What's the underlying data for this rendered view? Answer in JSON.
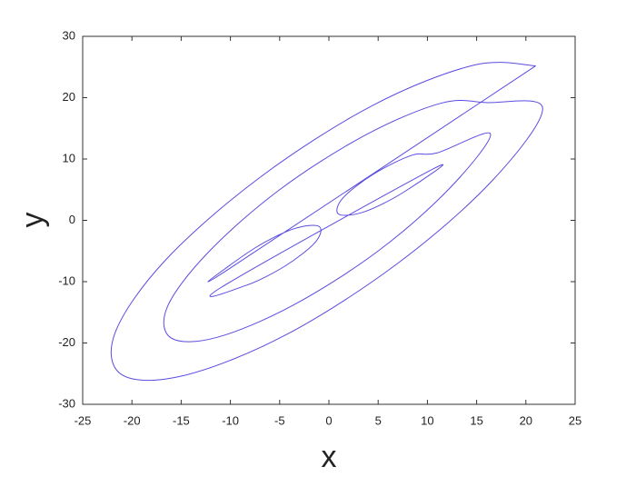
{
  "chart_data": {
    "type": "line",
    "xlabel": "x",
    "ylabel": "y",
    "xlim": [
      -25,
      25
    ],
    "ylim": [
      -30,
      30
    ],
    "xticks": [
      -25,
      -20,
      -15,
      -10,
      -5,
      0,
      5,
      10,
      15,
      20,
      25
    ],
    "yticks": [
      -30,
      -20,
      -10,
      0,
      10,
      20,
      30
    ],
    "series": [
      {
        "color": "#5b4ce0",
        "x": [
          21,
          14.7,
          4.4,
          -7,
          -16.6,
          -21.7,
          -21,
          -14.7,
          -4.4,
          7,
          16.6,
          21.7,
          16,
          11.4,
          3.7,
          -5,
          -12.3,
          -16.4,
          -16,
          -11.4,
          -3.7,
          5,
          12.3,
          16.4,
          11,
          8.4,
          4.5,
          1.4,
          1,
          3.6,
          7.5,
          10.6,
          -11,
          -8.4,
          -4.5,
          -1.4,
          -1,
          -3.6,
          -7.5,
          -10.6,
          21
        ],
        "y": [
          25.2,
          25.3,
          18.7,
          7,
          -6.5,
          -18.3,
          -25.2,
          -25.3,
          -18.7,
          -7,
          6.5,
          18.3,
          19.2,
          19.1,
          13.9,
          5,
          -5.3,
          -14.1,
          -19.2,
          -19.1,
          -13.9,
          -5,
          5.3,
          14.1,
          11,
          10.6,
          7.5,
          3.6,
          1,
          1.4,
          4.5,
          8.4,
          -11,
          -10.6,
          -7.5,
          -3.6,
          -1,
          -1.4,
          -4.5,
          -8.4,
          25.2
        ]
      }
    ]
  }
}
